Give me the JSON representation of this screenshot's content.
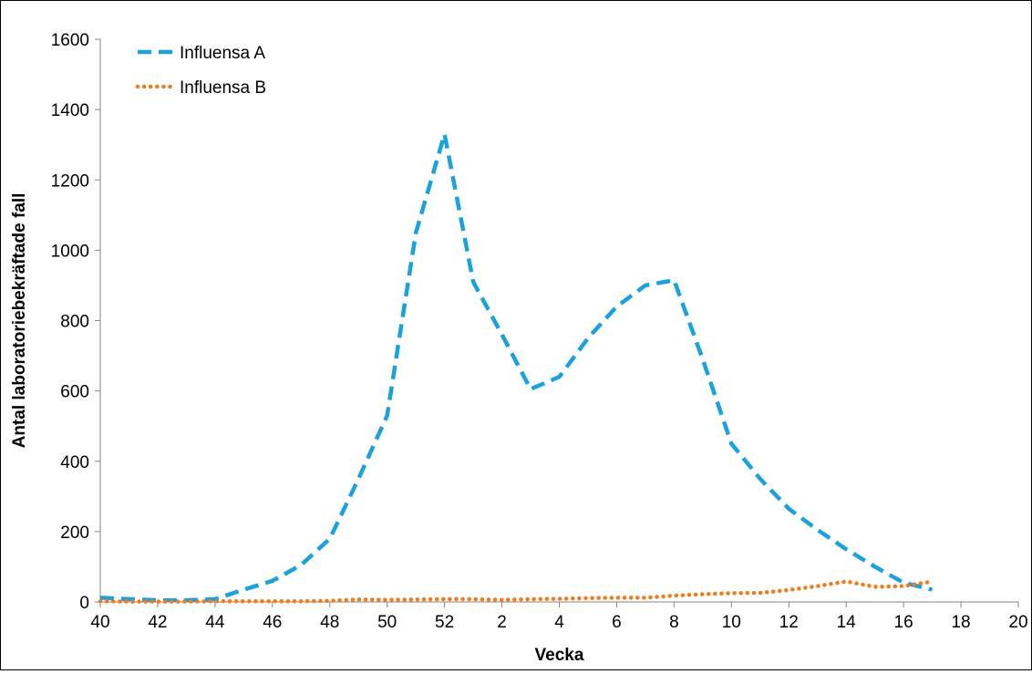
{
  "chart_data": {
    "type": "line",
    "xlabel": "Vecka",
    "ylabel": "Antal laboratoriebekräftade fall",
    "ylim": [
      0,
      1600
    ],
    "yticks": [
      "0",
      "200",
      "400",
      "600",
      "800",
      "1000",
      "1200",
      "1400",
      "1600"
    ],
    "xtick_labels": [
      "40",
      "42",
      "44",
      "46",
      "48",
      "50",
      "52",
      "2",
      "4",
      "6",
      "8",
      "10",
      "12",
      "14",
      "16",
      "18",
      "20"
    ],
    "x": [
      "40",
      "41",
      "42",
      "43",
      "44",
      "45",
      "46",
      "47",
      "48",
      "49",
      "50",
      "51",
      "52",
      "1",
      "2",
      "3",
      "4",
      "5",
      "6",
      "7",
      "8",
      "9",
      "10",
      "11",
      "12",
      "13",
      "14",
      "15",
      "16",
      "17"
    ],
    "legend_position": "top-left",
    "grid": false,
    "series": [
      {
        "name": "Influensa A",
        "color": "#1ba1dc",
        "dash": "dashed",
        "values": [
          12,
          8,
          5,
          5,
          8,
          35,
          60,
          105,
          180,
          350,
          530,
          1050,
          1330,
          910,
          760,
          605,
          640,
          750,
          840,
          900,
          915,
          690,
          450,
          350,
          265,
          205,
          150,
          100,
          55,
          35
        ]
      },
      {
        "name": "Influensa B",
        "color": "#f07c1c",
        "dash": "dotted",
        "values": [
          2,
          1,
          1,
          1,
          2,
          2,
          2,
          2,
          3,
          7,
          6,
          7,
          8,
          8,
          6,
          8,
          9,
          11,
          12,
          12,
          18,
          22,
          25,
          26,
          34,
          45,
          58,
          43,
          45,
          58
        ]
      }
    ]
  }
}
